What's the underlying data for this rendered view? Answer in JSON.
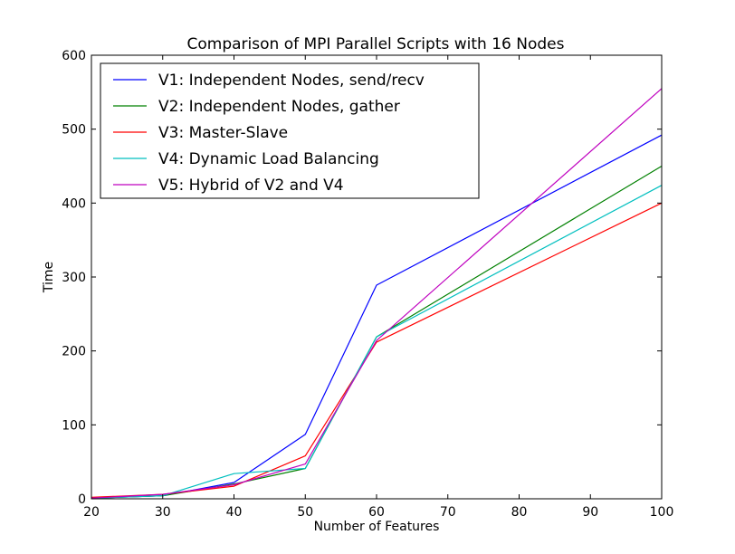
{
  "chart_data": {
    "type": "line",
    "title": "Comparison of MPI Parallel Scripts with 16 Nodes",
    "xlabel": "Number of Features",
    "ylabel": "Time",
    "xlim": [
      20,
      100
    ],
    "ylim": [
      0,
      600
    ],
    "xticks": [
      "20",
      "30",
      "40",
      "50",
      "60",
      "70",
      "80",
      "90",
      "100"
    ],
    "yticks": [
      "0",
      "100",
      "200",
      "300",
      "400",
      "500",
      "600"
    ],
    "grid": false,
    "legend_position": "top-left",
    "series": [
      {
        "name": "V1: Independent Nodes, send/recv",
        "color": "#0000ff",
        "x": [
          20,
          30,
          40,
          50,
          60,
          100
        ],
        "y": [
          1,
          4,
          22,
          87,
          289,
          492
        ]
      },
      {
        "name": "V2: Independent Nodes, gather",
        "color": "#008000",
        "x": [
          20,
          30,
          40,
          50,
          60,
          100
        ],
        "y": [
          1,
          4,
          20,
          41,
          219,
          450
        ]
      },
      {
        "name": "V3: Master-Slave",
        "color": "#ff0000",
        "x": [
          20,
          30,
          40,
          50,
          60,
          100
        ],
        "y": [
          2,
          6,
          17,
          58,
          212,
          400
        ]
      },
      {
        "name": "V4: Dynamic Load Balancing",
        "color": "#00bfbf",
        "x": [
          20,
          30,
          40,
          50,
          60,
          100
        ],
        "y": [
          1,
          4,
          34,
          41,
          219,
          424
        ]
      },
      {
        "name": "V5: Hybrid of V2 and V4",
        "color": "#bf00bf",
        "x": [
          20,
          30,
          40,
          50,
          60,
          100
        ],
        "y": [
          1,
          6,
          19,
          47,
          214,
          555
        ]
      }
    ]
  }
}
